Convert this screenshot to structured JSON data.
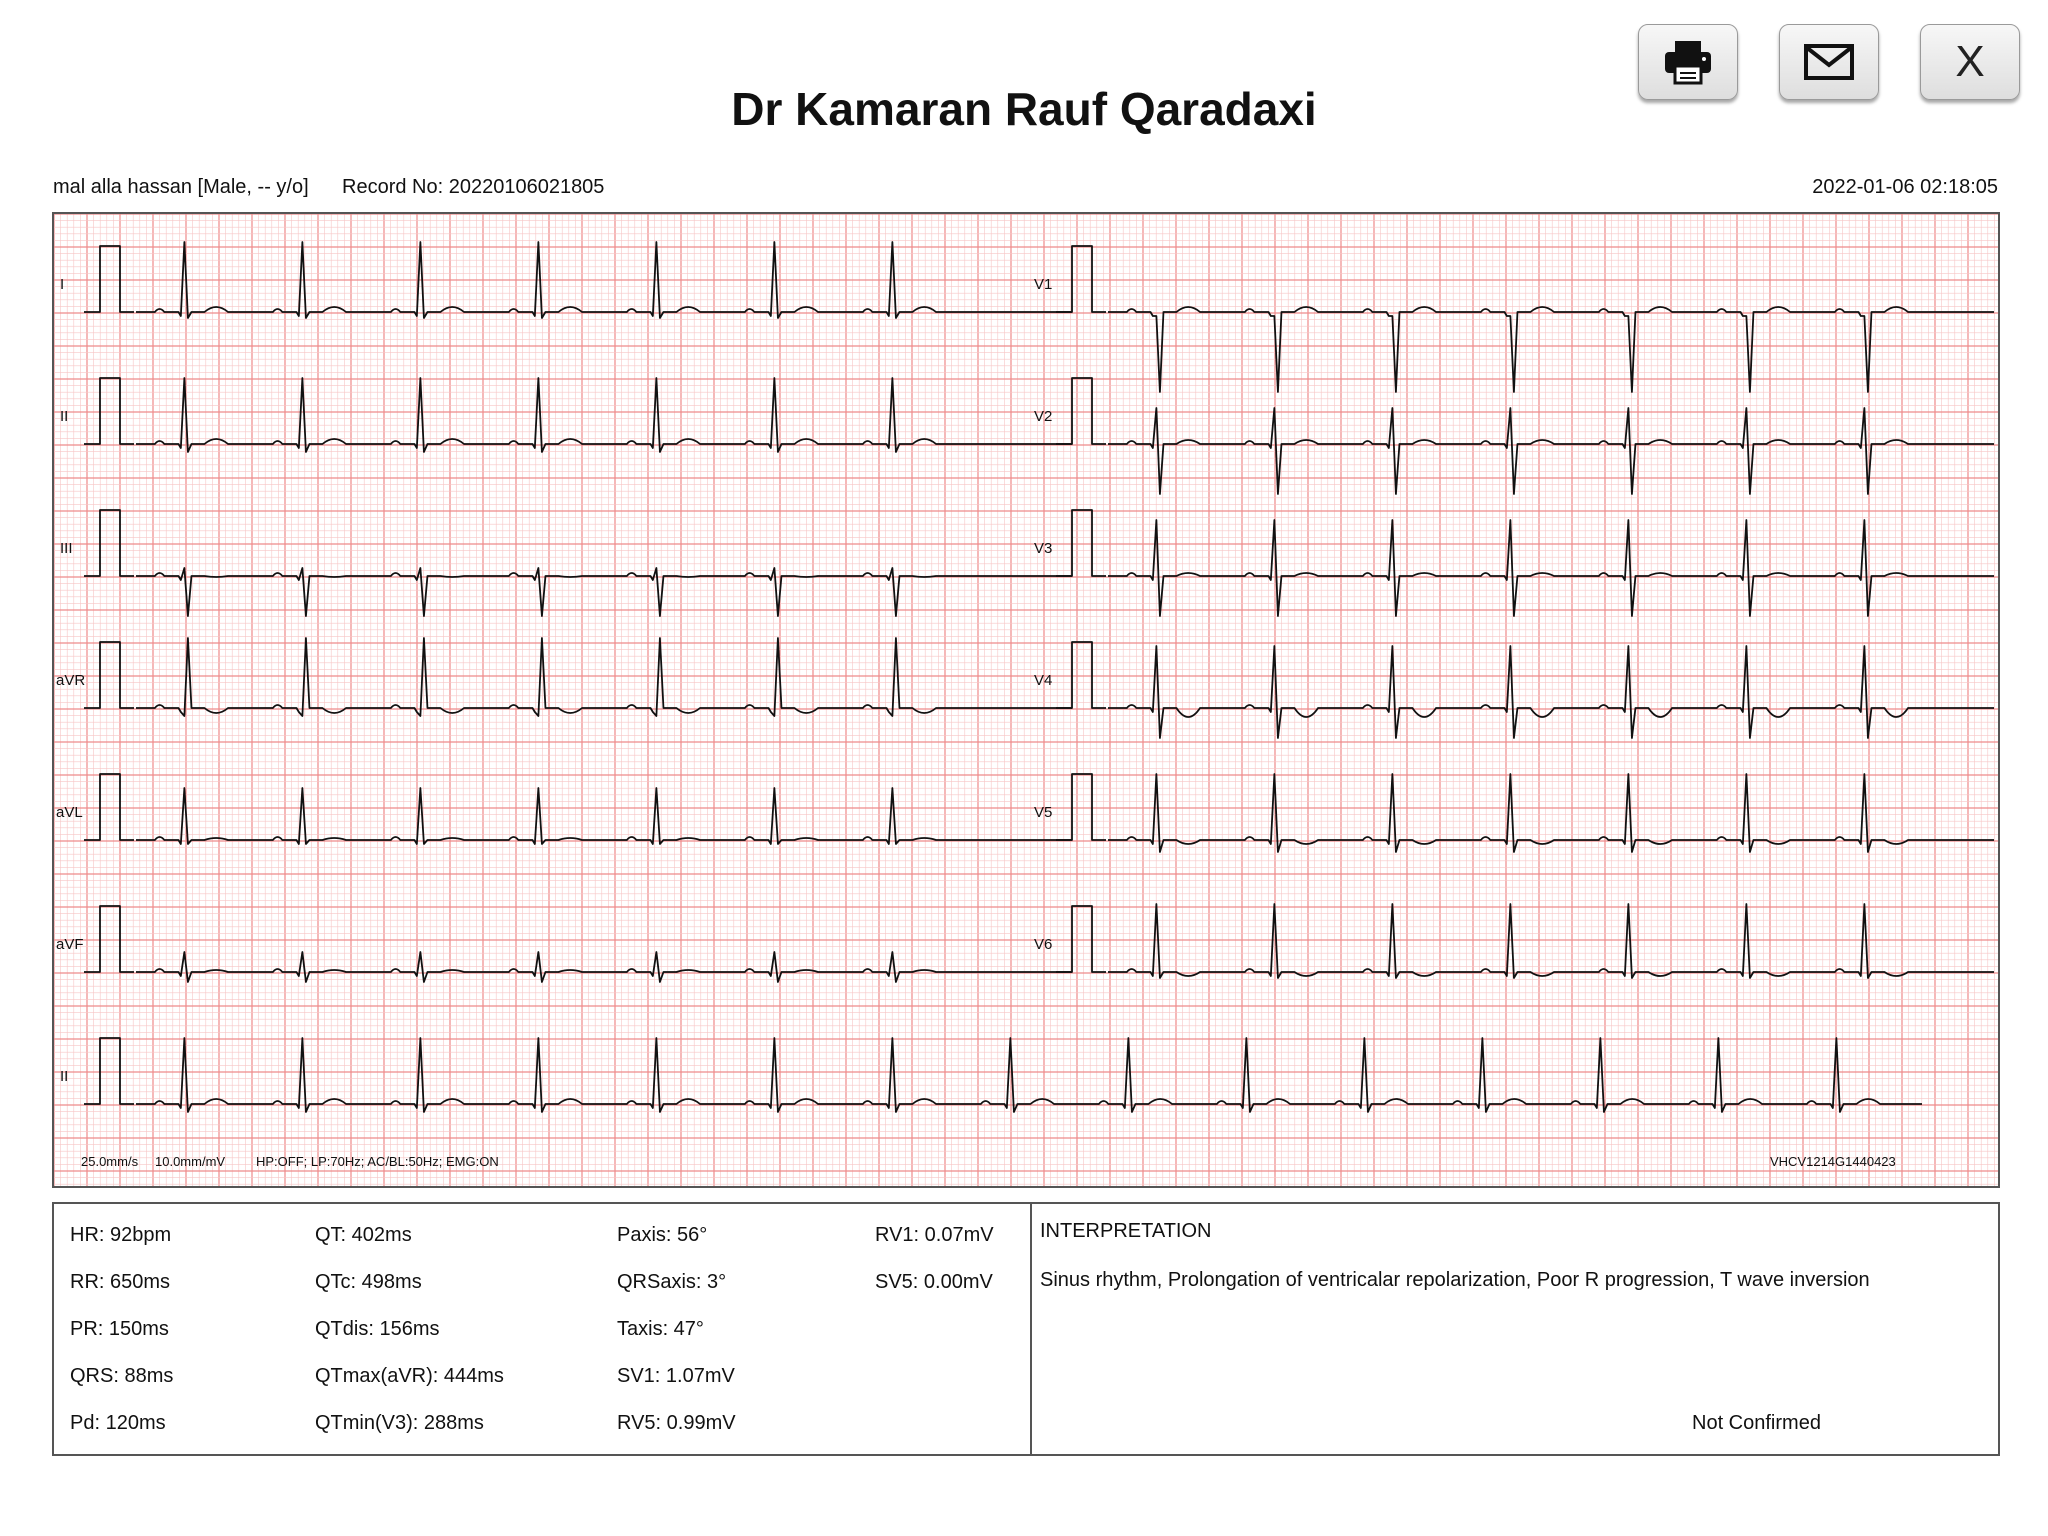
{
  "title": "Dr Kamaran Rauf Qaradaxi",
  "toolbar": {
    "print_icon": "printer-icon",
    "email_icon": "envelope-icon",
    "close_label": "X"
  },
  "header": {
    "patient": "mal alla hassan [Male, -- y/o]",
    "record": "Record No: 20220106021805",
    "datetime": "2022-01-06 02:18:05"
  },
  "colors": {
    "grid_minor": "#f7c6c6",
    "grid_major": "#ee8a8a",
    "trace": "#111111"
  },
  "leads_left": [
    "I",
    "II",
    "III",
    "aVR",
    "aVL",
    "aVF",
    "II"
  ],
  "leads_right": [
    "V1",
    "V2",
    "V3",
    "V4",
    "V5",
    "V6"
  ],
  "footer": {
    "speed": "25.0mm/s",
    "gain": "10.0mm/mV",
    "filters": "HP:OFF; LP:70Hz; AC/BL:50Hz; EMG:ON",
    "device": "VHCV1214G1440423"
  },
  "measurements": {
    "col1": [
      "HR: 92bpm",
      "RR: 650ms",
      "PR: 150ms",
      "QRS: 88ms",
      "Pd: 120ms"
    ],
    "col2": [
      "QT: 402ms",
      "QTc: 498ms",
      "QTdis: 156ms",
      "QTmax(aVR): 444ms",
      "QTmin(V3): 288ms"
    ],
    "col3": [
      "Paxis: 56°",
      "QRSaxis: 3°",
      "Taxis: 47°",
      "SV1: 1.07mV",
      "RV5: 0.99mV"
    ],
    "col4": [
      "RV1: 0.07mV",
      "SV5: 0.00mV"
    ]
  },
  "interpretation": {
    "heading": "INTERPRETATION",
    "text": "Sinus rhythm, Prolongation of ventricalar repolarization, Poor R progression, T wave inversion",
    "status": "Not Confirmed"
  }
}
